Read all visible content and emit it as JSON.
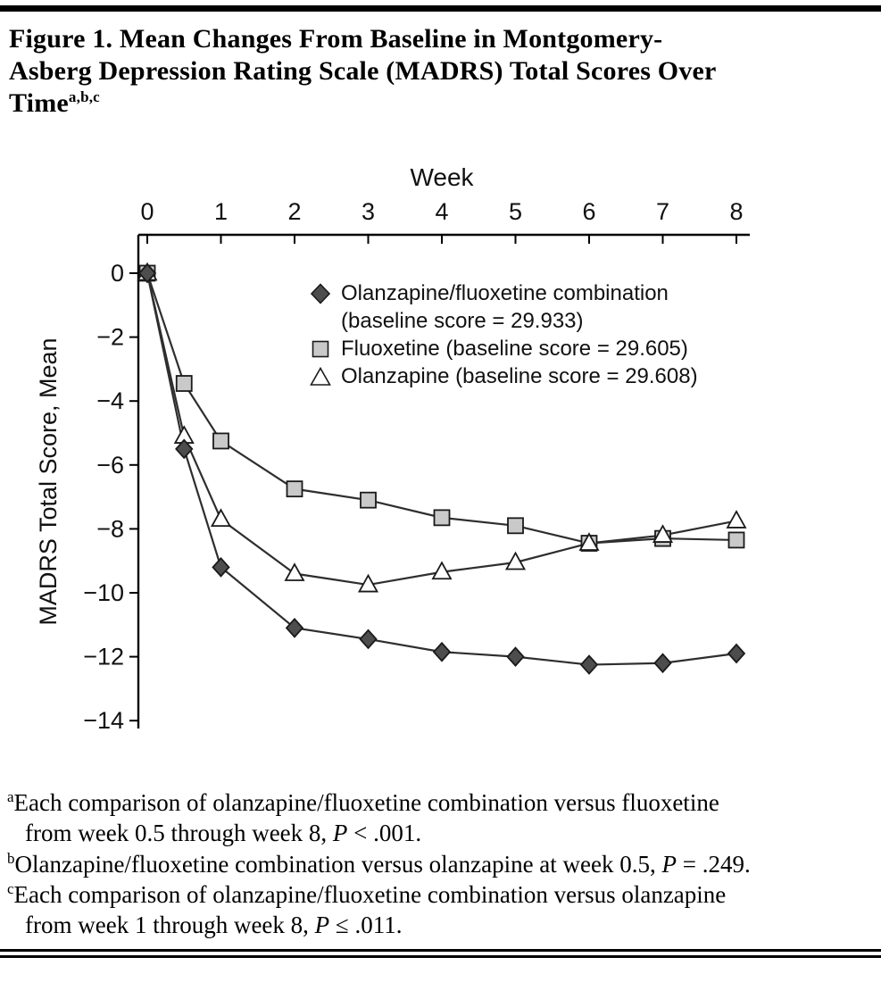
{
  "header": {
    "title_lines": [
      "Figure 1. Mean Changes From Baseline in Montgomery-",
      "Asberg Depression Rating Scale (MADRS) Total Scores Over",
      "Time"
    ],
    "title_superscript": "a,b,c"
  },
  "chart_data": {
    "type": "line",
    "xlabel": "Week",
    "ylabel": "MADRS Total Score, Mean",
    "x": [
      0,
      0.5,
      1,
      2,
      3,
      4,
      5,
      6,
      7,
      8
    ],
    "x_ticks": [
      0,
      1,
      2,
      3,
      4,
      5,
      6,
      7,
      8
    ],
    "y_ticks": [
      0,
      -2,
      -4,
      -6,
      -8,
      -10,
      -12,
      -14
    ],
    "xlim": [
      -0.15,
      8.2
    ],
    "ylim": [
      -14.3,
      1.2
    ],
    "x_axis_position": "top",
    "grid": false,
    "line_color": "#2e2e2e",
    "series": [
      {
        "id": "olanzapine-fluoxetine-combination",
        "name": "Olanzapine/fluoxetine combination (baseline score = 29.933)",
        "baseline_score": 29.933,
        "marker": "diamond",
        "marker_fill": "#4d4d4d",
        "values": [
          0,
          -5.5,
          -9.2,
          -11.1,
          -11.45,
          -11.85,
          -12.0,
          -12.25,
          -12.2,
          -11.9
        ]
      },
      {
        "id": "fluoxetine",
        "name": "Fluoxetine (baseline score = 29.605)",
        "baseline_score": 29.605,
        "marker": "square",
        "marker_fill": "#c9c9c9",
        "values": [
          0,
          -3.45,
          -5.25,
          -6.75,
          -7.1,
          -7.65,
          -7.9,
          -8.45,
          -8.3,
          -8.35
        ]
      },
      {
        "id": "olanzapine",
        "name": "Olanzapine (baseline score = 29.608)",
        "baseline_score": 29.608,
        "marker": "triangle",
        "marker_fill": "#ffffff",
        "values": [
          0,
          -5.1,
          -7.7,
          -9.4,
          -9.75,
          -9.35,
          -9.05,
          -8.45,
          -8.2,
          -7.75
        ]
      }
    ],
    "legend": {
      "position": "inside-top-right",
      "items": [
        {
          "marker": "diamond",
          "lines": [
            "Olanzapine/fluoxetine combination",
            "(baseline score = 29.933)"
          ]
        },
        {
          "marker": "square",
          "lines": [
            "Fluoxetine (baseline score = 29.605)"
          ]
        },
        {
          "marker": "triangle",
          "lines": [
            "Olanzapine (baseline score = 29.608)"
          ]
        }
      ]
    }
  },
  "footnotes": [
    {
      "marker": "a",
      "text": "Each comparison of olanzapine/fluoxetine combination versus fluoxetine from week 0.5 through week 8, ",
      "p": "P",
      "p_rest": " < .001."
    },
    {
      "marker": "b",
      "text": "Olanzapine/fluoxetine combination versus olanzapine at week 0.5, ",
      "p": "P",
      "p_rest": " = .249."
    },
    {
      "marker": "c",
      "text": "Each comparison of olanzapine/fluoxetine combination versus olanzapine from week 1 through week 8, ",
      "p": "P",
      "p_rest": " ≤ .011."
    }
  ]
}
